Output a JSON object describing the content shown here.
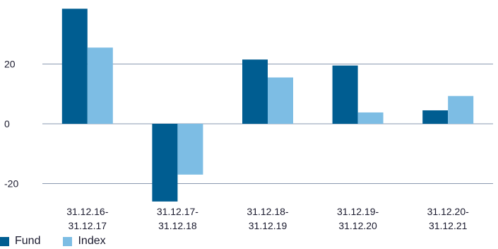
{
  "chart_data": {
    "type": "bar",
    "categories": [
      [
        "31.12.16-",
        "31.12.17"
      ],
      [
        "31.12.17-",
        "31.12.18"
      ],
      [
        "31.12.18-",
        "31.12.19"
      ],
      [
        "31.12.19-",
        "31.12.20"
      ],
      [
        "31.12.20-",
        "31.12.21"
      ]
    ],
    "series": [
      {
        "name": "Fund",
        "color": "#005d91",
        "values": [
          38.5,
          -26,
          21.5,
          19.5,
          4.5
        ]
      },
      {
        "name": "Index",
        "color": "#7dbde4",
        "values": [
          25.5,
          -17,
          15.5,
          3.8,
          9.3
        ]
      }
    ],
    "yticks": [
      20,
      0,
      -20
    ],
    "ylim": [
      -26,
      38.5
    ],
    "grid": true,
    "legend_position": "bottom-left"
  }
}
